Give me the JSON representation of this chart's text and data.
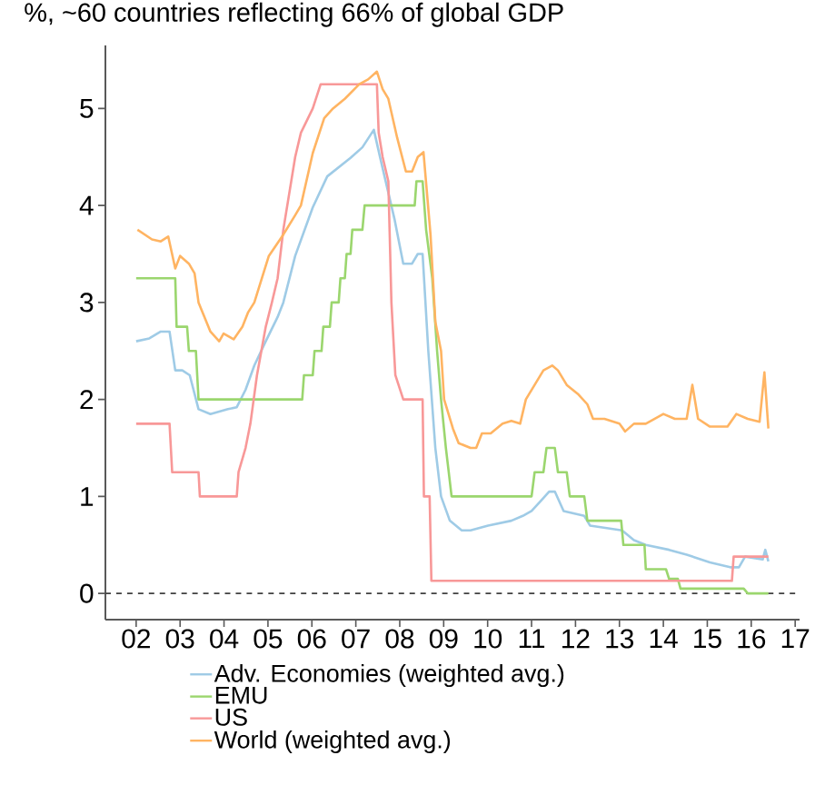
{
  "chart_data": {
    "type": "line",
    "title": "%, ~60 countries reflecting 66% of global GDP",
    "xlim": [
      2001.3,
      2017.1
    ],
    "ylim": [
      -0.27,
      5.65
    ],
    "xticks": [
      {
        "value": 2002,
        "label": "02"
      },
      {
        "value": 2003,
        "label": "03"
      },
      {
        "value": 2004,
        "label": "04"
      },
      {
        "value": 2005,
        "label": "05"
      },
      {
        "value": 2006,
        "label": "06"
      },
      {
        "value": 2007,
        "label": "07"
      },
      {
        "value": 2008,
        "label": "08"
      },
      {
        "value": 2009,
        "label": "09"
      },
      {
        "value": 2010,
        "label": "10"
      },
      {
        "value": 2011,
        "label": "11"
      },
      {
        "value": 2012,
        "label": "12"
      },
      {
        "value": 2013,
        "label": "13"
      },
      {
        "value": 2014,
        "label": "14"
      },
      {
        "value": 2015,
        "label": "15"
      },
      {
        "value": 2016,
        "label": "16"
      },
      {
        "value": 2017,
        "label": "17"
      }
    ],
    "yticks": [
      0,
      1,
      2,
      3,
      4,
      5
    ],
    "legend": "bottom",
    "ref_lines": [
      {
        "axis": "y",
        "value": 0,
        "color": "#404040",
        "line_style": "dashed"
      }
    ],
    "series": [
      {
        "name": "Adv. Economies (weighted avg.)",
        "color": "#9fcbe6",
        "x": [
          2002.0,
          2002.3,
          2002.56,
          2002.76,
          2002.89,
          2003.05,
          2003.22,
          2003.42,
          2003.69,
          2004.09,
          2004.29,
          2004.49,
          2004.69,
          2004.95,
          2005.22,
          2005.35,
          2005.62,
          2006.02,
          2006.35,
          2006.88,
          2007.15,
          2007.41,
          2007.55,
          2007.88,
          2008.08,
          2008.28,
          2008.41,
          2008.52,
          2008.65,
          2008.81,
          2008.94,
          2009.14,
          2009.41,
          2009.61,
          2010.01,
          2010.54,
          2010.8,
          2011.0,
          2011.2,
          2011.4,
          2011.53,
          2011.73,
          2012.2,
          2012.33,
          2013.06,
          2013.33,
          2013.6,
          2014.13,
          2014.53,
          2015.06,
          2015.52,
          2015.72,
          2015.86,
          2016.26,
          2016.32,
          2016.39
        ],
        "values": [
          2.6,
          2.63,
          2.7,
          2.7,
          2.3,
          2.3,
          2.25,
          1.9,
          1.85,
          1.9,
          1.92,
          2.1,
          2.35,
          2.6,
          2.85,
          3.0,
          3.48,
          3.98,
          4.3,
          4.49,
          4.6,
          4.78,
          4.5,
          3.86,
          3.4,
          3.4,
          3.5,
          3.5,
          2.5,
          1.5,
          1.0,
          0.75,
          0.65,
          0.65,
          0.7,
          0.75,
          0.8,
          0.85,
          0.95,
          1.05,
          1.05,
          0.85,
          0.8,
          0.7,
          0.65,
          0.55,
          0.5,
          0.45,
          0.4,
          0.32,
          0.27,
          0.27,
          0.38,
          0.35,
          0.45,
          0.33
        ]
      },
      {
        "name": "EMU",
        "color": "#9bd66e",
        "x": [
          2002.0,
          2002.89,
          2002.92,
          2003.16,
          2003.2,
          2003.36,
          2003.42,
          2005.78,
          2005.82,
          2006.02,
          2006.06,
          2006.22,
          2006.26,
          2006.41,
          2006.45,
          2006.61,
          2006.65,
          2006.75,
          2006.79,
          2006.88,
          2006.92,
          2007.15,
          2007.2,
          2008.34,
          2008.38,
          2008.52,
          2008.6,
          2008.74,
          2008.85,
          2008.94,
          2009.05,
          2009.18,
          2011.0,
          2011.07,
          2011.27,
          2011.34,
          2011.53,
          2011.6,
          2011.8,
          2011.87,
          2012.2,
          2012.27,
          2013.04,
          2013.09,
          2013.57,
          2013.6,
          2014.06,
          2014.13,
          2014.33,
          2014.39,
          2015.83,
          2015.92,
          2016.39
        ],
        "values": [
          3.25,
          3.25,
          2.75,
          2.75,
          2.5,
          2.5,
          2.0,
          2.0,
          2.25,
          2.25,
          2.5,
          2.5,
          2.75,
          2.75,
          3.0,
          3.0,
          3.25,
          3.25,
          3.5,
          3.5,
          3.75,
          3.75,
          4.0,
          4.0,
          4.25,
          4.25,
          3.75,
          3.25,
          2.5,
          2.0,
          1.5,
          1.0,
          1.0,
          1.25,
          1.25,
          1.5,
          1.5,
          1.25,
          1.25,
          1.0,
          1.0,
          0.75,
          0.75,
          0.5,
          0.5,
          0.25,
          0.25,
          0.15,
          0.15,
          0.05,
          0.05,
          0.0,
          0.0
        ]
      },
      {
        "name": "US",
        "color": "#f89898",
        "x": [
          2002.0,
          2002.76,
          2002.82,
          2003.42,
          2003.45,
          2004.29,
          2004.33,
          2004.49,
          2004.6,
          2004.75,
          2004.95,
          2005.09,
          2005.22,
          2005.35,
          2005.62,
          2005.75,
          2006.02,
          2006.2,
          2007.48,
          2007.52,
          2007.61,
          2007.74,
          2007.81,
          2007.9,
          2008.08,
          2008.52,
          2008.55,
          2008.68,
          2008.72,
          2015.56,
          2015.6,
          2016.39
        ],
        "values": [
          1.75,
          1.75,
          1.25,
          1.25,
          1.0,
          1.0,
          1.25,
          1.5,
          1.75,
          2.25,
          2.75,
          3.0,
          3.25,
          3.75,
          4.5,
          4.75,
          5.0,
          5.25,
          5.25,
          4.75,
          4.5,
          4.25,
          3.0,
          2.25,
          2.0,
          2.0,
          1.0,
          1.0,
          0.13,
          0.13,
          0.38,
          0.38
        ]
      },
      {
        "name": "World (weighted avg.)",
        "color": "#ffb462",
        "x": [
          2002.03,
          2002.36,
          2002.56,
          2002.73,
          2002.89,
          2003.0,
          2003.2,
          2003.33,
          2003.42,
          2003.69,
          2003.89,
          2003.99,
          2004.22,
          2004.42,
          2004.55,
          2004.69,
          2005.02,
          2005.35,
          2005.62,
          2005.75,
          2006.02,
          2006.28,
          2006.48,
          2006.75,
          2007.08,
          2007.28,
          2007.48,
          2007.61,
          2007.74,
          2007.94,
          2008.14,
          2008.28,
          2008.41,
          2008.54,
          2008.7,
          2008.81,
          2008.94,
          2009.01,
          2009.21,
          2009.34,
          2009.61,
          2009.74,
          2009.87,
          2010.07,
          2010.34,
          2010.54,
          2010.74,
          2010.87,
          2011.07,
          2011.27,
          2011.47,
          2011.6,
          2011.8,
          2012.07,
          2012.27,
          2012.4,
          2012.66,
          2013.0,
          2013.13,
          2013.33,
          2013.6,
          2014.0,
          2014.26,
          2014.53,
          2014.66,
          2014.79,
          2015.06,
          2015.46,
          2015.66,
          2015.92,
          2016.19,
          2016.3,
          2016.39
        ],
        "values": [
          3.75,
          3.65,
          3.63,
          3.68,
          3.35,
          3.48,
          3.4,
          3.3,
          3.0,
          2.7,
          2.6,
          2.68,
          2.62,
          2.75,
          2.9,
          3.0,
          3.48,
          3.7,
          3.9,
          4.0,
          4.54,
          4.9,
          5.0,
          5.1,
          5.25,
          5.3,
          5.38,
          5.2,
          5.1,
          4.7,
          4.35,
          4.35,
          4.5,
          4.55,
          3.7,
          2.8,
          2.5,
          2.0,
          1.7,
          1.55,
          1.5,
          1.5,
          1.65,
          1.65,
          1.75,
          1.78,
          1.75,
          2.0,
          2.15,
          2.3,
          2.35,
          2.3,
          2.15,
          2.05,
          1.95,
          1.8,
          1.8,
          1.75,
          1.67,
          1.75,
          1.75,
          1.85,
          1.8,
          1.8,
          2.15,
          1.8,
          1.72,
          1.72,
          1.85,
          1.8,
          1.77,
          2.28,
          1.7
        ]
      }
    ]
  }
}
